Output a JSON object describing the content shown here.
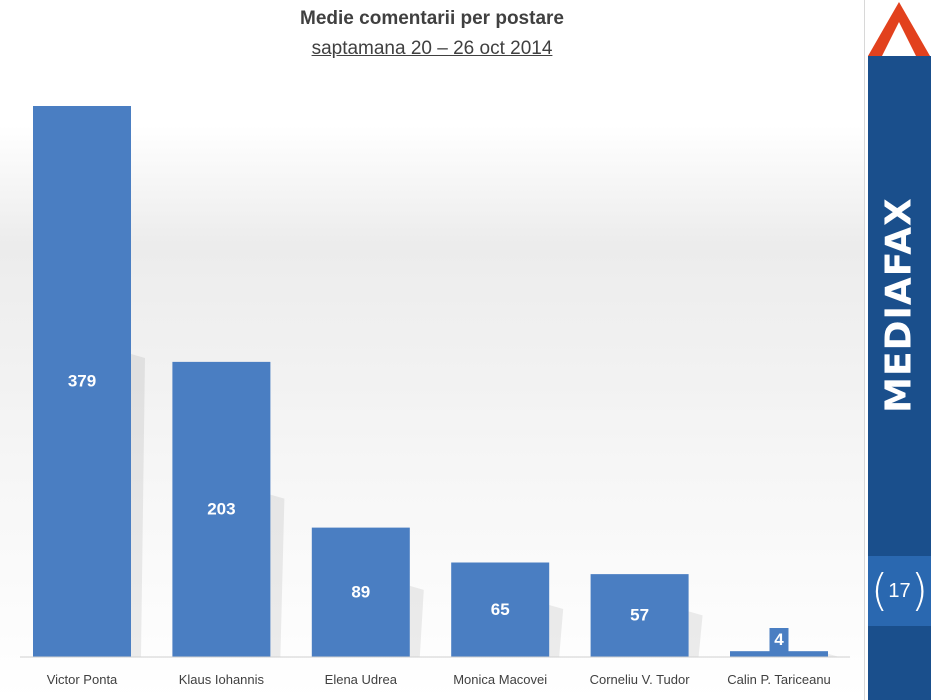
{
  "chart_data": {
    "type": "bar",
    "title": "Medie comentarii per postare",
    "subtitle": "saptamana 20 – 26 oct 2014",
    "categories": [
      "Victor Ponta",
      "Klaus Iohannis",
      "Elena Udrea",
      "Monica Macovei",
      "Corneliu V. Tudor",
      "Calin P. Tariceanu"
    ],
    "values": [
      379,
      203,
      89,
      65,
      57,
      4
    ],
    "data_labels": [
      "379",
      "203",
      "89",
      "65",
      "57",
      "4"
    ],
    "xlabel": "",
    "ylabel": "",
    "ylim": [
      0,
      379
    ],
    "grid": false,
    "legend": "none",
    "bar_color": "#4a7ec2"
  },
  "sidebar": {
    "brand": "MEDIAFAX",
    "page_number": "17",
    "color": "#1a4f8c",
    "badge_color": "#2a68b0",
    "logo_color": "#e2411d"
  }
}
